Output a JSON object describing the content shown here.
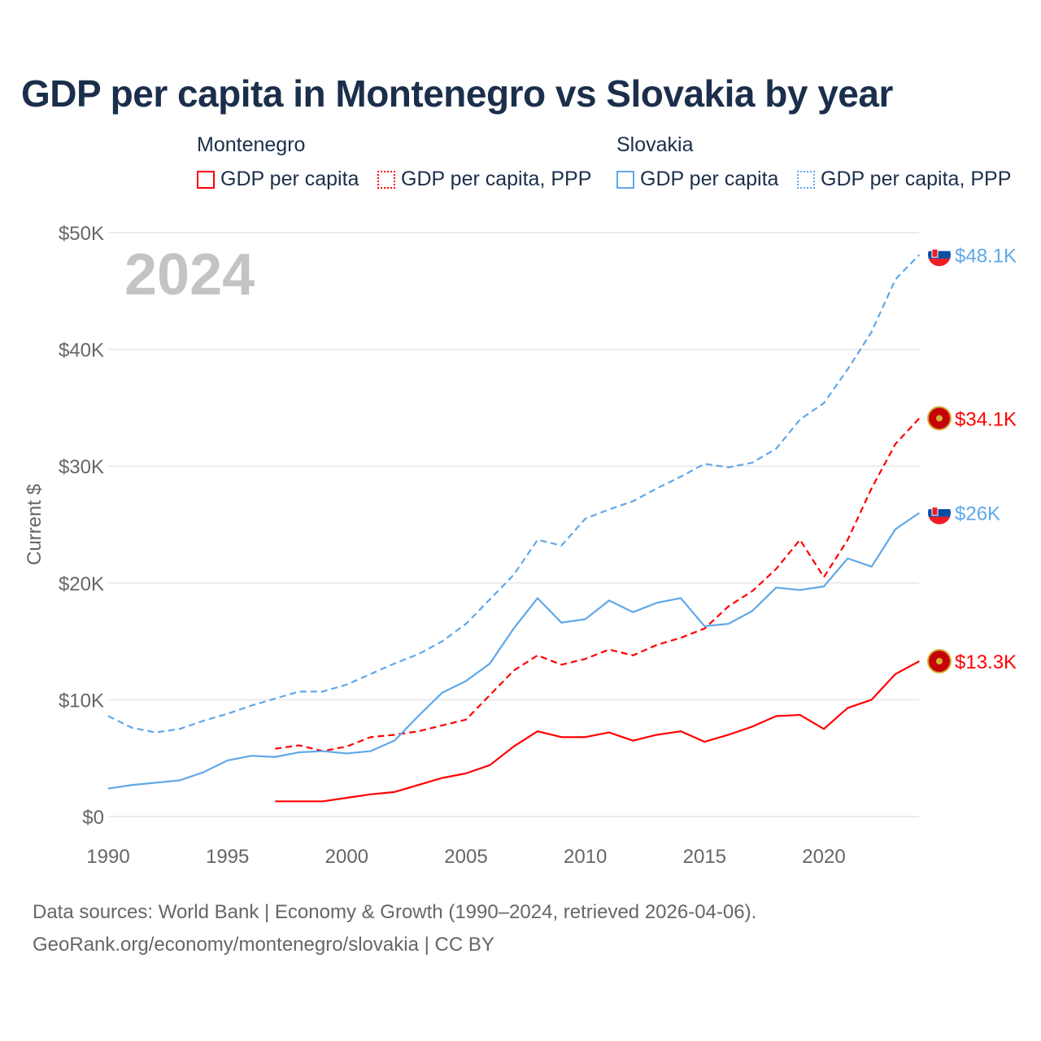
{
  "title": "GDP per capita in Montenegro vs Slovakia by year",
  "legend": {
    "groups": [
      {
        "name": "Montenegro",
        "color": "#ff0000",
        "items": [
          "GDP per capita",
          "GDP per capita, PPP"
        ]
      },
      {
        "name": "Slovakia",
        "color": "#5fa8e8",
        "items": [
          "GDP per capita",
          "GDP per capita, PPP"
        ]
      }
    ]
  },
  "footer": {
    "line1": "Data sources: World Bank | Economy & Growth (1990–2024, retrieved 2026-04-06).",
    "line2": "GeoRank.org/economy/montenegro/slovakia | CC BY"
  },
  "chart_data": {
    "type": "line",
    "title": "GDP per capita in Montenegro vs Slovakia by year",
    "year_overlay": "2024",
    "xlabel": "",
    "ylabel": "Current $",
    "xlim": [
      1990,
      2024
    ],
    "ylim": [
      0,
      50
    ],
    "x_ticks": [
      1990,
      1995,
      2000,
      2005,
      2010,
      2015,
      2020
    ],
    "x_tick_labels": [
      "1990",
      "1995",
      "2000",
      "2005",
      "2010",
      "2015",
      "2020"
    ],
    "y_ticks": [
      0,
      10,
      20,
      30,
      40,
      50
    ],
    "y_tick_labels": [
      "$0",
      "$10K",
      "$20K",
      "$30K",
      "$40K",
      "$50K"
    ],
    "units": "thousand USD",
    "grid": true,
    "legend_position": "top",
    "series": [
      {
        "name": "Slovakia GDP per capita, PPP",
        "color": "#5fa8e8",
        "dash": true,
        "start": 1990,
        "values": [
          8.6,
          7.6,
          7.2,
          7.5,
          8.2,
          8.8,
          9.5,
          10.1,
          10.7,
          10.7,
          11.3,
          12.2,
          13.1,
          13.9,
          15.0,
          16.5,
          18.6,
          20.7,
          23.7,
          23.2,
          25.5,
          26.3,
          27.0,
          28.1,
          29.1,
          30.2,
          29.9,
          30.3,
          31.5,
          34.0,
          35.4,
          38.3,
          41.5,
          46.0,
          48.1
        ],
        "end_label": "$48.1K"
      },
      {
        "name": "Montenegro GDP per capita, PPP",
        "color": "#ff0000",
        "dash": true,
        "start": 1997,
        "values": [
          5.8,
          6.1,
          5.6,
          6.0,
          6.8,
          7.0,
          7.3,
          7.8,
          8.3,
          10.4,
          12.5,
          13.8,
          13.0,
          13.5,
          14.3,
          13.8,
          14.7,
          15.3,
          16.1,
          18.0,
          19.3,
          21.2,
          23.7,
          20.5,
          23.7,
          28.1,
          31.9,
          34.1
        ],
        "end_label": "$34.1K"
      },
      {
        "name": "Slovakia GDP per capita",
        "color": "#5fa8e8",
        "dash": false,
        "start": 1990,
        "values": [
          2.4,
          2.7,
          2.9,
          3.1,
          3.8,
          4.8,
          5.2,
          5.1,
          5.5,
          5.6,
          5.4,
          5.6,
          6.5,
          8.6,
          10.6,
          11.6,
          13.1,
          16.1,
          18.7,
          16.6,
          16.9,
          18.5,
          17.5,
          18.3,
          18.7,
          16.3,
          16.5,
          17.6,
          19.6,
          19.4,
          19.7,
          22.1,
          21.4,
          24.6,
          26.0
        ],
        "end_label": "$26K"
      },
      {
        "name": "Montenegro GDP per capita",
        "color": "#ff0000",
        "dash": false,
        "start": 1997,
        "values": [
          1.3,
          1.3,
          1.3,
          1.6,
          1.9,
          2.1,
          2.7,
          3.3,
          3.7,
          4.4,
          6.0,
          7.3,
          6.8,
          6.8,
          7.2,
          6.5,
          7.0,
          7.3,
          6.4,
          7.0,
          7.7,
          8.6,
          8.7,
          7.5,
          9.3,
          10.0,
          12.2,
          13.3
        ],
        "end_label": "$13.3K"
      }
    ]
  }
}
